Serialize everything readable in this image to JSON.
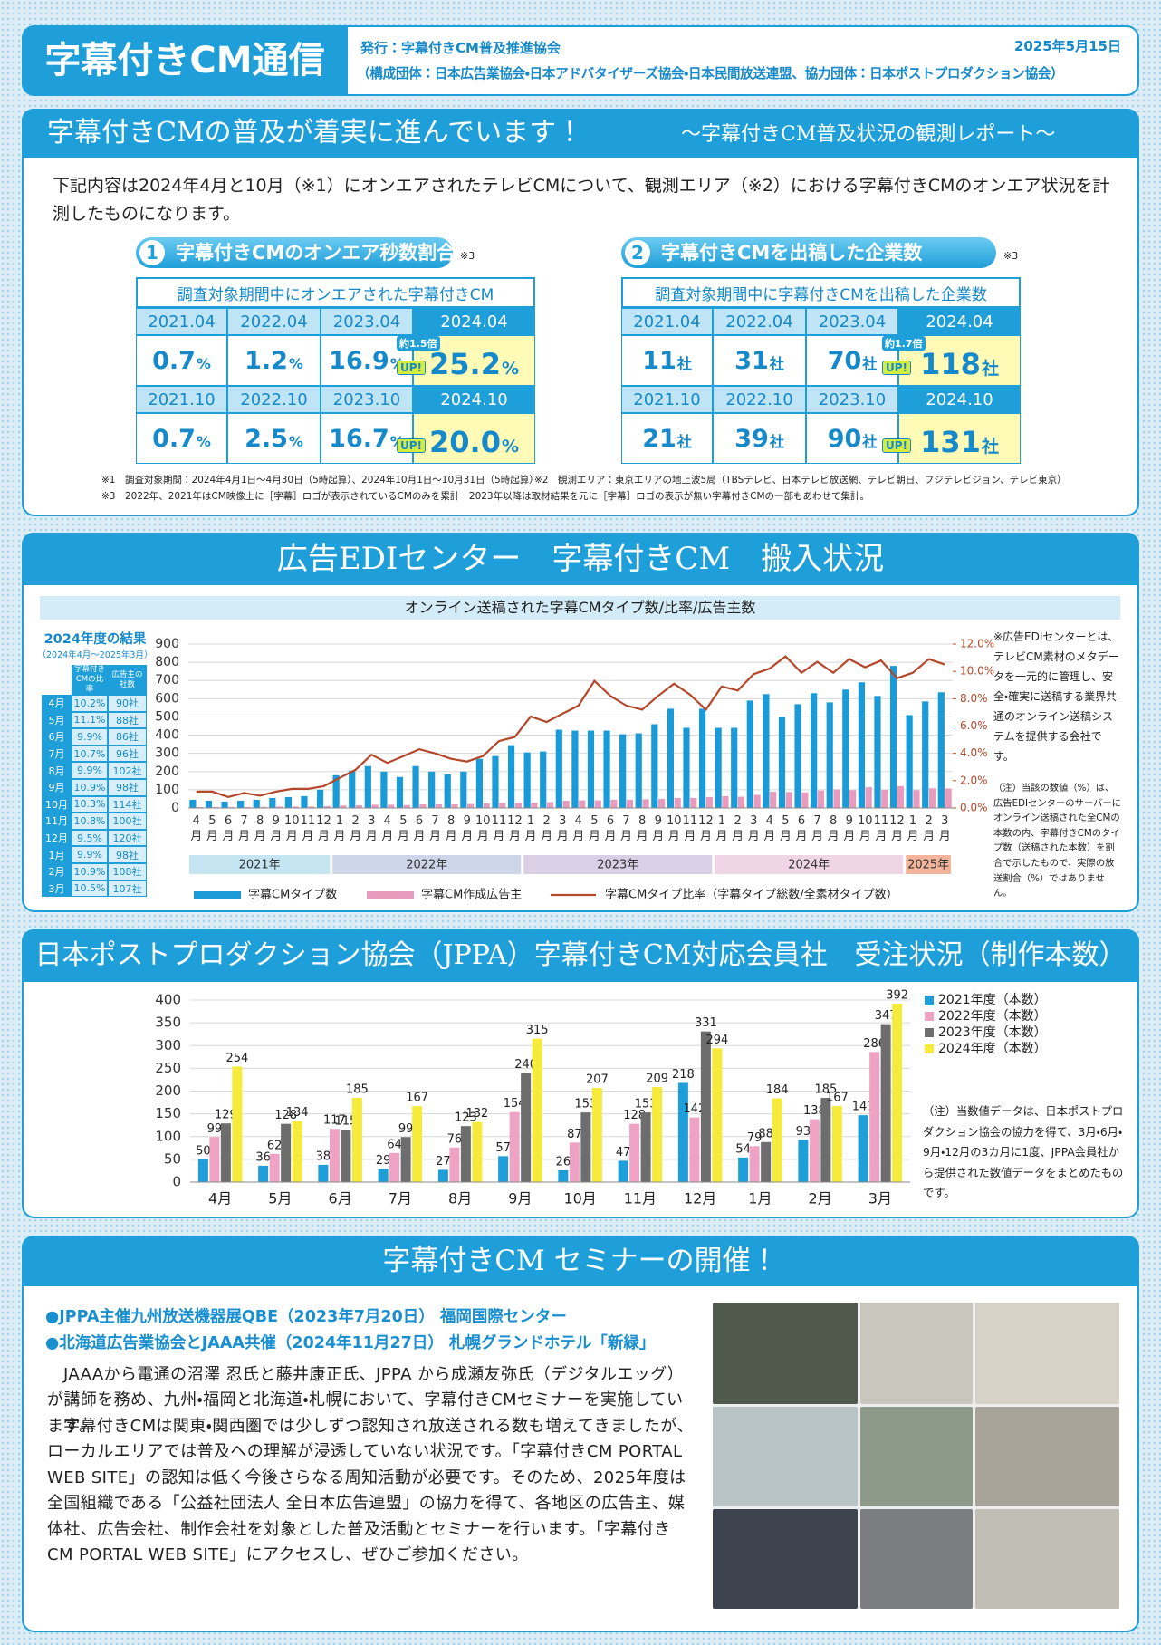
{
  "header": {
    "title": "字幕付きCM通信",
    "publisher": "発行：字幕付きCM普及推進協会",
    "members": "（構成団体：日本広告業協会・日本アドバタイザーズ協会・日本民間放送連盟、協力団体：日本ポストプロダクション協会）",
    "date": "2025年5月15日"
  },
  "report": {
    "title": "字幕付きCMの普及が着実に進んでいます！",
    "subtitle": "〜字幕付きCM普及状況の観測レポート〜",
    "intro": "下記内容は2024年4月と10月（※1）にオンエアされたテレビCMについて、観測エリア（※2）における字幕付きCMのオンエア状況を計測したものになります。",
    "panels": [
      {
        "number": "1",
        "heading": "字幕付きCMのオンエア秒数割合",
        "note": "※3",
        "caption": "調査対象期間中にオンエアされた字幕付きCM",
        "rows": [
          {
            "periods": [
              "2021.04",
              "2022.04",
              "2023.04",
              "2024.04"
            ],
            "cells": [
              {
                "num": "0.7",
                "unit": "%"
              },
              {
                "num": "1.2",
                "unit": "%"
              },
              {
                "num": "16.9",
                "unit": "%"
              },
              {
                "num": "25.2",
                "unit": "%"
              }
            ],
            "badge": {
              "ratio": "約1.5倍",
              "up": "UP!"
            }
          },
          {
            "periods": [
              "2021.10",
              "2022.10",
              "2023.10",
              "2024.10"
            ],
            "cells": [
              {
                "num": "0.7",
                "unit": "%"
              },
              {
                "num": "2.5",
                "unit": "%"
              },
              {
                "num": "16.7",
                "unit": "%"
              },
              {
                "num": "20.0",
                "unit": "%"
              }
            ],
            "badge": {
              "up": "UP!"
            }
          }
        ]
      },
      {
        "number": "2",
        "heading": "字幕付きCMを出稿した企業数",
        "note": "※3",
        "caption": "調査対象期間中に字幕付きCMを出稿した企業数",
        "rows": [
          {
            "periods": [
              "2021.04",
              "2022.04",
              "2023.04",
              "2024.04"
            ],
            "cells": [
              {
                "num": "11",
                "unit": "社"
              },
              {
                "num": "31",
                "unit": "社"
              },
              {
                "num": "70",
                "unit": "社"
              },
              {
                "num": "118",
                "unit": "社"
              }
            ],
            "badge": {
              "ratio": "約1.7倍",
              "up": "UP!"
            }
          },
          {
            "periods": [
              "2021.10",
              "2022.10",
              "2023.10",
              "2024.10"
            ],
            "cells": [
              {
                "num": "21",
                "unit": "社"
              },
              {
                "num": "39",
                "unit": "社"
              },
              {
                "num": "90",
                "unit": "社"
              },
              {
                "num": "131",
                "unit": "社"
              }
            ],
            "badge": {
              "up": "UP!"
            }
          }
        ]
      }
    ],
    "footnotes": [
      "※1　調査対象期間：2024年4月1日〜4月30日（5時起算）、2024年10月1日〜10月31日（5時起算）",
      "※2　観測エリア：東京エリアの地上波5局（TBSテレビ、日本テレビ放送網、テレビ朝日、フジテレビジョン、テレビ東京）",
      "※3　2022年、2021年はCM映像上に［字幕］ロゴが表示されているCMのみを累計　2023年以降は取材結果を元に［字幕］ロゴの表示が無い字幕付きCMの一部もあわせて集計。"
    ]
  },
  "edi": {
    "title": "広告EDIセンター　字幕付きCM　搬入状況",
    "summary": {
      "title": "2024年度の結果",
      "period": "（2024年4月〜2025年3月）",
      "headers": [
        "字幕付きCMの比率",
        "広告主の社数"
      ],
      "rows": [
        [
          "4月",
          "10.2%",
          "90社"
        ],
        [
          "5月",
          "11.1%",
          "88社"
        ],
        [
          "6月",
          "9.9%",
          "86社"
        ],
        [
          "7月",
          "10.7%",
          "96社"
        ],
        [
          "8月",
          "9.9%",
          "102社"
        ],
        [
          "9月",
          "10.9%",
          "98社"
        ],
        [
          "10月",
          "10.3%",
          "114社"
        ],
        [
          "11月",
          "10.8%",
          "100社"
        ],
        [
          "12月",
          "9.5%",
          "120社"
        ],
        [
          "1月",
          "9.9%",
          "98社"
        ],
        [
          "2月",
          "10.9%",
          "108社"
        ],
        [
          "3月",
          "10.5%",
          "107社"
        ]
      ]
    },
    "about": "※広告EDIセンターとは、テレビCM素材のメタデータを一元的に管理し、安全・確実に送稿する業界共通のオンライン送稿システムを提供する会社です。",
    "note": "（注）当該の数値（%）は、広告EDIセンターのサーバーにオンライン送稿された全CMの本数の内、字幕付きCMのタイプ数（送稿された本数）を割合で示したもので、実際の放送割合（%）ではありません。"
  },
  "chart_data": [
    {
      "type": "bar",
      "title": "オンライン送稿された字幕CMタイプ数/比率/広告主数",
      "categories": [
        "4月",
        "5月",
        "6月",
        "7月",
        "8月",
        "9月",
        "10月",
        "11月",
        "12月",
        "1月",
        "2月",
        "3月",
        "4月",
        "5月",
        "6月",
        "7月",
        "8月",
        "9月",
        "10月",
        "11月",
        "12月",
        "1月",
        "2月",
        "3月",
        "4月",
        "5月",
        "6月",
        "7月",
        "8月",
        "9月",
        "10月",
        "11月",
        "12月",
        "1月",
        "2月",
        "3月",
        "4月",
        "5月",
        "6月",
        "7月",
        "8月",
        "9月",
        "10月",
        "11月",
        "12月",
        "1月",
        "2月",
        "3月"
      ],
      "groups": [
        {
          "label": "2021年",
          "count": 9,
          "color": "#c6e5f3"
        },
        {
          "label": "2022年",
          "count": 12,
          "color": "#cdd6e8"
        },
        {
          "label": "2023年",
          "count": 12,
          "color": "#dacfe5"
        },
        {
          "label": "2024年",
          "count": 12,
          "color": "#efd5e6"
        },
        {
          "label": "2025年",
          "count": 3,
          "color": "#f4b49c"
        }
      ],
      "series": [
        {
          "name": "字幕CMタイプ数",
          "type": "bar",
          "color": "#1a9ad6",
          "values": [
            45,
            40,
            35,
            40,
            45,
            55,
            60,
            65,
            100,
            180,
            205,
            230,
            200,
            170,
            230,
            200,
            185,
            200,
            270,
            285,
            345,
            305,
            310,
            430,
            425,
            425,
            425,
            405,
            410,
            460,
            545,
            440,
            545,
            440,
            440,
            590,
            625,
            500,
            570,
            630,
            580,
            650,
            690,
            615,
            780,
            510,
            585,
            635
          ]
        },
        {
          "name": "字幕CM作成広告主",
          "type": "bar",
          "color": "#e99bbd",
          "values": [
            5,
            5,
            5,
            5,
            6,
            8,
            8,
            8,
            10,
            14,
            15,
            18,
            18,
            16,
            20,
            20,
            20,
            22,
            25,
            28,
            30,
            30,
            32,
            40,
            42,
            42,
            45,
            45,
            48,
            50,
            55,
            55,
            60,
            65,
            62,
            72,
            90,
            88,
            86,
            96,
            102,
            98,
            114,
            100,
            120,
            98,
            108,
            107
          ]
        },
        {
          "name": "字幕CMタイプ比率（字幕タイプ総数/全素材タイプ数）",
          "type": "line",
          "axis": "y2",
          "color": "#b5472a",
          "values": [
            1.2,
            1.2,
            0.8,
            1.1,
            0.9,
            1.2,
            1.4,
            1.4,
            1.6,
            2.2,
            2.8,
            3.9,
            3.3,
            3.8,
            4.3,
            4.0,
            3.6,
            3.4,
            3.8,
            4.9,
            5.2,
            6.7,
            6.3,
            6.9,
            7.5,
            9.3,
            8.2,
            7.5,
            7.2,
            8.2,
            9.1,
            8.3,
            7.2,
            8.9,
            8.6,
            9.8,
            10.2,
            11.1,
            9.9,
            10.7,
            9.9,
            10.9,
            10.3,
            10.8,
            9.5,
            9.9,
            10.9,
            10.5
          ]
        }
      ],
      "ylim": [
        0,
        900
      ],
      "yticks": [
        0,
        100,
        200,
        300,
        400,
        500,
        600,
        700,
        800,
        900
      ],
      "y2lim": [
        0,
        12
      ],
      "y2ticks": [
        {
          "value": 0,
          "label": "0.0%"
        },
        {
          "value": 2,
          "label": "2.0%"
        },
        {
          "value": 4,
          "label": "4.0%"
        },
        {
          "value": 6,
          "label": "6.0%"
        },
        {
          "value": 8,
          "label": "8.0%"
        },
        {
          "value": 10,
          "label": "10.0%"
        },
        {
          "value": 12,
          "label": "12.0%"
        }
      ],
      "grid": true,
      "legend": "bottom"
    },
    {
      "type": "bar",
      "categories": [
        "4月",
        "5月",
        "6月",
        "7月",
        "8月",
        "9月",
        "10月",
        "11月",
        "12月",
        "1月",
        "2月",
        "3月"
      ],
      "series": [
        {
          "name": "2021年度（本数）",
          "color": "#1e9fd9",
          "values": [
            50,
            36,
            38,
            29,
            27,
            57,
            26,
            47,
            218,
            54,
            93,
            147
          ]
        },
        {
          "name": "2022年度（本数）",
          "color": "#eea3c4",
          "values": [
            99,
            62,
            117,
            64,
            76,
            154,
            87,
            128,
            142,
            79,
            138,
            286
          ]
        },
        {
          "name": "2023年度（本数）",
          "color": "#6d6d6d",
          "values": [
            129,
            128,
            115,
            99,
            123,
            240,
            153,
            153,
            331,
            88,
            185,
            347
          ]
        },
        {
          "name": "2024年度（本数）",
          "color": "#f6ea3a",
          "values": [
            254,
            134,
            185,
            167,
            132,
            315,
            207,
            209,
            294,
            184,
            167,
            392
          ]
        }
      ],
      "ylim": [
        0,
        400
      ],
      "yticks": [
        0,
        50,
        100,
        150,
        200,
        250,
        300,
        350,
        400
      ],
      "grid": true,
      "legend": "right",
      "data_labels": true
    }
  ],
  "jppa": {
    "title": "日本ポストプロダクション協会（JPPA）字幕付きCM対応会員社　受注状況（制作本数）",
    "note": "（注）当数値データは、日本ポストプロダクション協会の協力を得て、3月・6月・9月・12月の3カ月に1度、JPPA会員社から提供された数値データをまとめたものです。"
  },
  "seminar": {
    "title": "字幕付きCM セミナーの開催！",
    "events": [
      "●JPPA主催九州放送機器展QBE（2023年7月20日） 福岡国際センター",
      "●北海道広告業協会とJAAA共催（2024年11月27日） 札幌グランドホテル「新緑」"
    ],
    "paragraphs": [
      "JAAAから電通の沼澤 忍氏と藤井康正氏、JPPA から成瀬友弥氏（デジタルエッグ）が講師を務め、九州・福岡と北海道・札幌において、字幕付きCMセミナーを実施しています。",
      "字幕付きCMは関東・関西圏では少しずつ認知され放送される数も増えてきましたが、ローカルエリアでは普及への理解が浸透していない状況です。「字幕付きCM PORTAL WEB SITE」の認知は低く今後さらなる周知活動が必要です。そのため、2025年度は全国組織である「公益社団法人 全日本広告連盟」の協力を得て、各地区の広告主、媒体社、広告会社、制作会社を対象とした普及活動とセミナーを行います。「字幕付きCM PORTAL WEB SITE」にアクセスし、ぜひご参加ください。"
    ]
  }
}
